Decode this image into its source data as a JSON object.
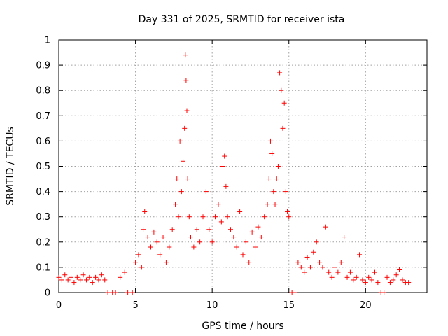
{
  "chart_data": {
    "type": "scatter",
    "title": "Day 331 of 2025, SRMTID for receiver ista",
    "xlabel": "GPS time / hours",
    "ylabel": "SRMTID / TECUs",
    "xlim": [
      0,
      24
    ],
    "ylim": [
      0,
      1
    ],
    "xticks": [
      0,
      5,
      10,
      15,
      20
    ],
    "yticks": [
      0,
      0.1,
      0.2,
      0.3,
      0.4,
      0.5,
      0.6,
      0.7,
      0.8,
      0.9,
      1
    ],
    "grid": true,
    "marker": "plus",
    "color": "#ff0000",
    "series": [
      {
        "name": "SRMTID",
        "x": [
          0.0,
          0.2,
          0.4,
          0.6,
          0.8,
          1.0,
          1.2,
          1.4,
          1.6,
          1.8,
          2.0,
          2.2,
          2.4,
          2.6,
          2.8,
          3.0,
          3.2,
          3.5,
          3.7,
          4.0,
          4.3,
          4.5,
          4.8,
          5.0,
          5.2,
          5.4,
          5.5,
          5.6,
          5.8,
          6.0,
          6.2,
          6.4,
          6.6,
          6.8,
          7.0,
          7.2,
          7.4,
          7.6,
          7.7,
          7.8,
          7.9,
          8.0,
          8.1,
          8.2,
          8.25,
          8.3,
          8.35,
          8.4,
          8.5,
          8.6,
          8.8,
          9.0,
          9.2,
          9.4,
          9.6,
          9.8,
          10.0,
          10.2,
          10.4,
          10.6,
          10.7,
          10.8,
          10.9,
          11.0,
          11.2,
          11.4,
          11.6,
          11.8,
          12.0,
          12.2,
          12.4,
          12.6,
          12.8,
          13.0,
          13.2,
          13.4,
          13.6,
          13.7,
          13.8,
          13.9,
          14.0,
          14.1,
          14.2,
          14.3,
          14.4,
          14.5,
          14.6,
          14.7,
          14.8,
          14.9,
          15.0,
          15.2,
          15.4,
          15.6,
          15.8,
          16.0,
          16.2,
          16.4,
          16.6,
          16.8,
          17.0,
          17.2,
          17.4,
          17.6,
          17.8,
          18.0,
          18.2,
          18.4,
          18.6,
          18.8,
          19.0,
          19.2,
          19.4,
          19.6,
          19.8,
          20.0,
          20.2,
          20.4,
          20.6,
          20.8,
          21.0,
          21.2,
          21.4,
          21.6,
          21.8,
          22.0,
          22.2,
          22.4,
          22.6,
          22.8
        ],
        "y": [
          0.06,
          0.05,
          0.07,
          0.05,
          0.06,
          0.04,
          0.06,
          0.05,
          0.07,
          0.05,
          0.06,
          0.04,
          0.06,
          0.05,
          0.07,
          0.05,
          0.0,
          0.0,
          0.0,
          0.06,
          0.08,
          0.0,
          0.0,
          0.12,
          0.15,
          0.1,
          0.25,
          0.32,
          0.22,
          0.18,
          0.24,
          0.2,
          0.15,
          0.22,
          0.12,
          0.18,
          0.25,
          0.35,
          0.45,
          0.3,
          0.6,
          0.4,
          0.52,
          0.65,
          0.94,
          0.84,
          0.72,
          0.45,
          0.3,
          0.22,
          0.18,
          0.25,
          0.2,
          0.3,
          0.4,
          0.25,
          0.2,
          0.3,
          0.35,
          0.28,
          0.5,
          0.54,
          0.42,
          0.3,
          0.25,
          0.22,
          0.18,
          0.32,
          0.15,
          0.2,
          0.12,
          0.24,
          0.18,
          0.26,
          0.22,
          0.3,
          0.35,
          0.45,
          0.6,
          0.55,
          0.4,
          0.35,
          0.45,
          0.5,
          0.87,
          0.8,
          0.65,
          0.75,
          0.4,
          0.32,
          0.3,
          0.0,
          0.0,
          0.12,
          0.1,
          0.08,
          0.14,
          0.1,
          0.16,
          0.2,
          0.12,
          0.1,
          0.26,
          0.08,
          0.06,
          0.1,
          0.08,
          0.12,
          0.22,
          0.06,
          0.08,
          0.05,
          0.06,
          0.15,
          0.05,
          0.04,
          0.06,
          0.05,
          0.08,
          0.04,
          0.0,
          0.0,
          0.06,
          0.04,
          0.05,
          0.07,
          0.09,
          0.05,
          0.04,
          0.04
        ]
      }
    ]
  }
}
